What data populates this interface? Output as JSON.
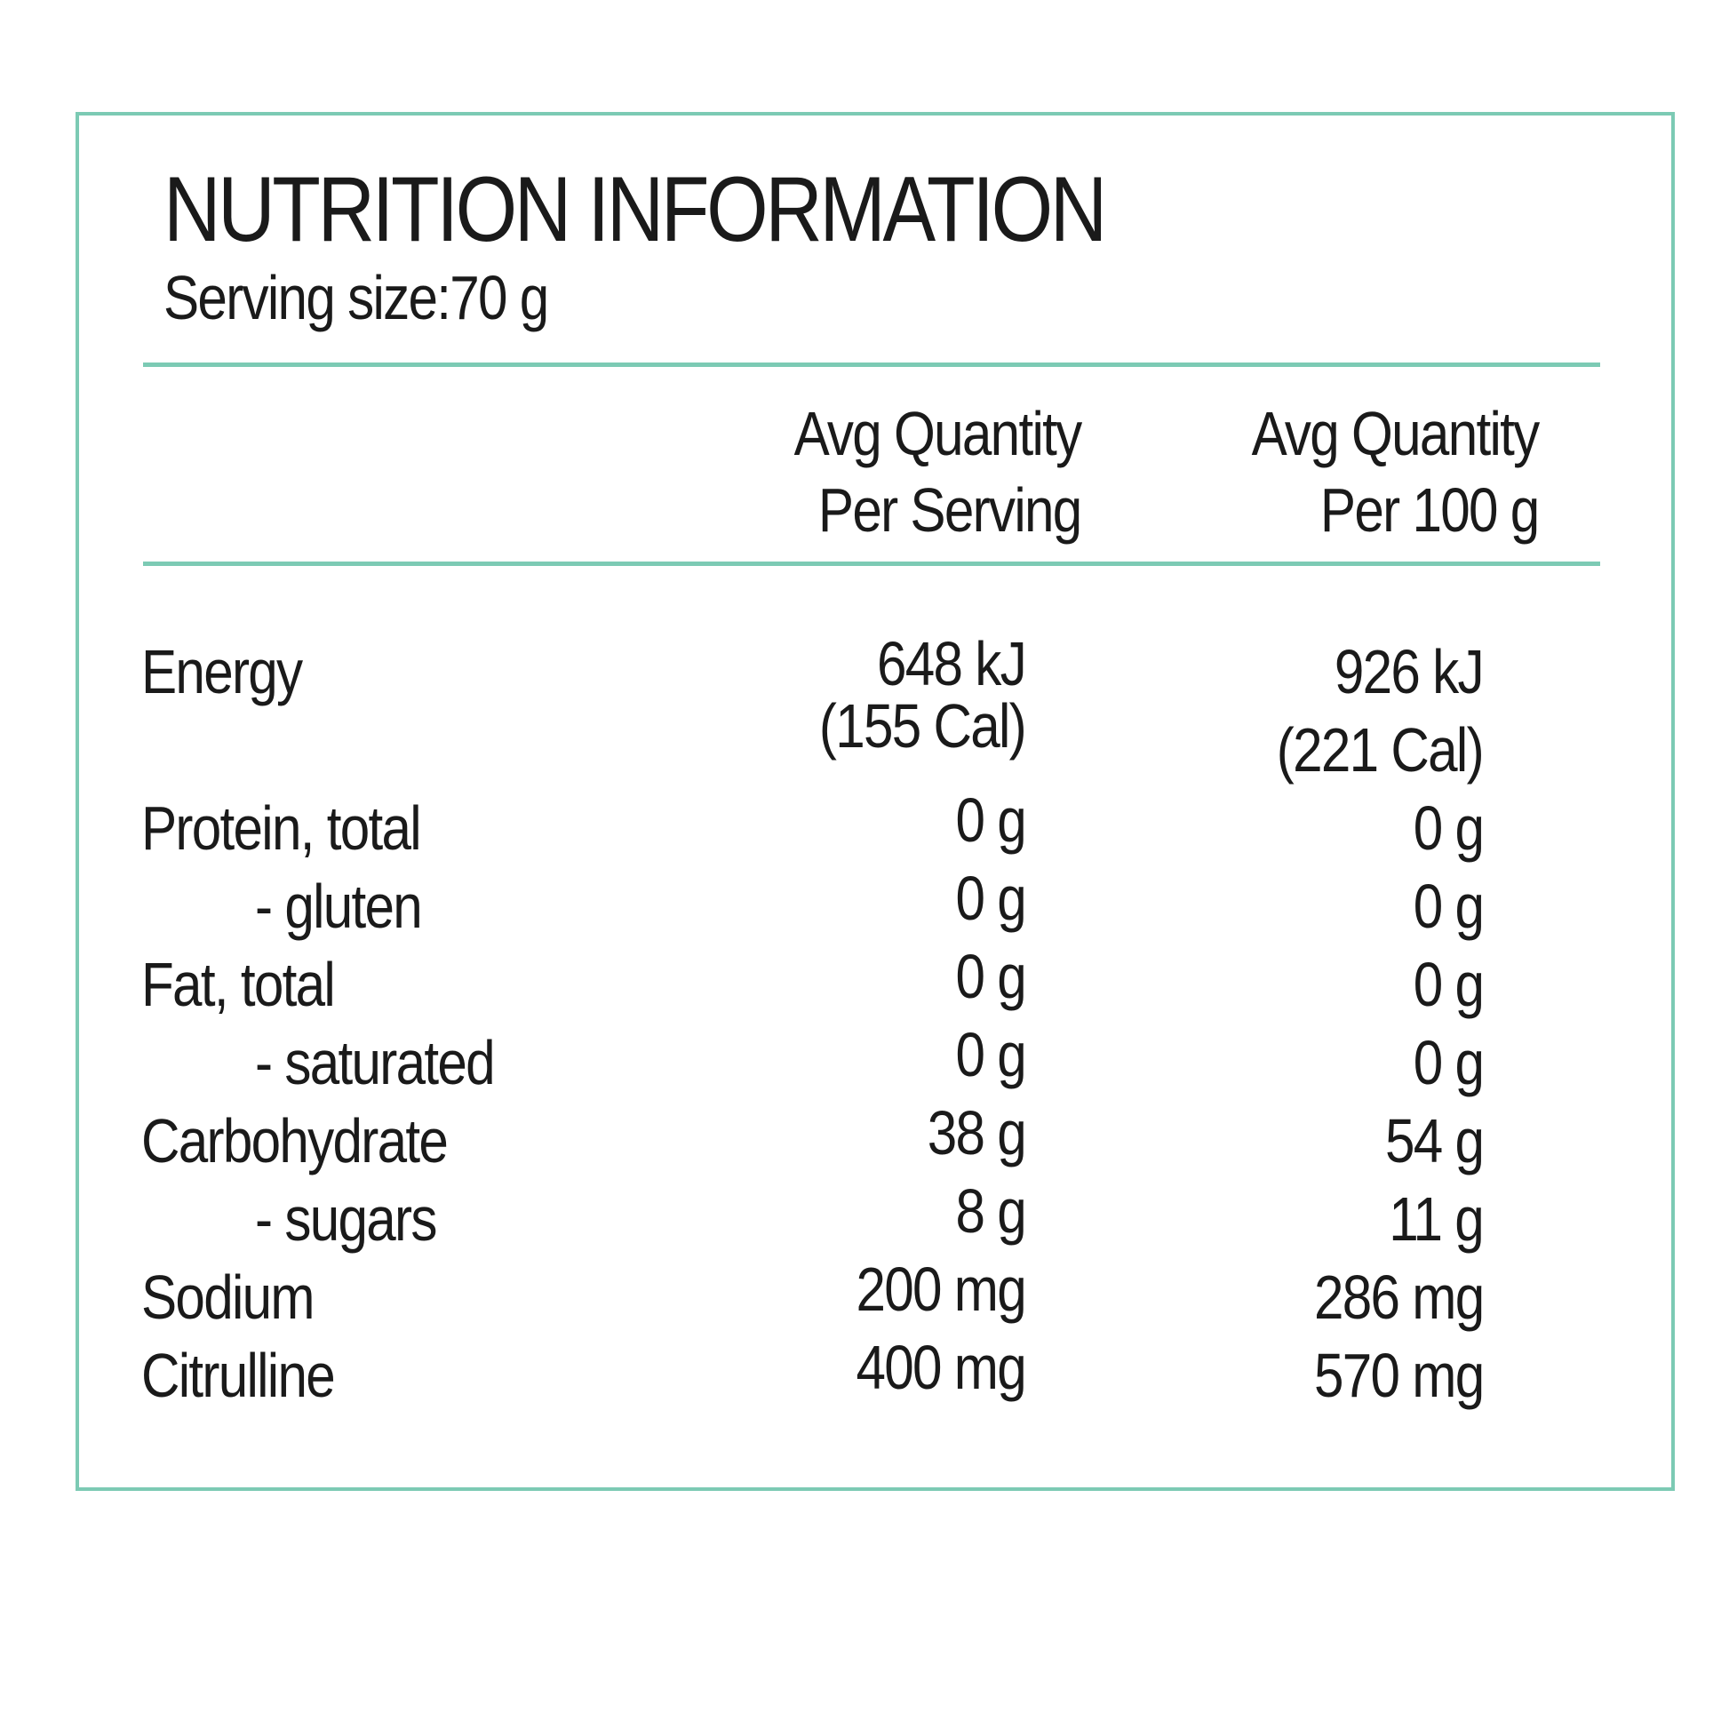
{
  "panel": {
    "title": "NUTRITION INFORMATION",
    "serving_size": "Serving size:70 g",
    "border_color": "#7ccab4"
  },
  "columns": {
    "per_serving": [
      "Avg Quantity",
      "Per Serving"
    ],
    "per_100g": [
      "Avg Quantity",
      "Per 100 g"
    ]
  },
  "rows": [
    {
      "label": "Energy",
      "per_serving": [
        "648 kJ",
        "(155 Cal)"
      ],
      "per_100g": [
        "926 kJ",
        "(221 Cal)"
      ]
    },
    {
      "label": "Protein, total",
      "per_serving": "0 g",
      "per_100g": "0 g"
    },
    {
      "label": "- gluten",
      "per_serving": "0 g",
      "per_100g": "0 g"
    },
    {
      "label": "Fat, total",
      "per_serving": "0 g",
      "per_100g": "0 g"
    },
    {
      "label": "- saturated",
      "per_serving": "0 g",
      "per_100g": "0 g"
    },
    {
      "label": "Carbohydrate",
      "per_serving": "38 g",
      "per_100g": "54 g"
    },
    {
      "label": "- sugars",
      "per_serving": "8 g",
      "per_100g": "11 g"
    },
    {
      "label": "Sodium",
      "per_serving": "200 mg",
      "per_100g": "286 mg"
    },
    {
      "label": "Citrulline",
      "per_serving": "400 mg",
      "per_100g": "570 mg"
    }
  ]
}
